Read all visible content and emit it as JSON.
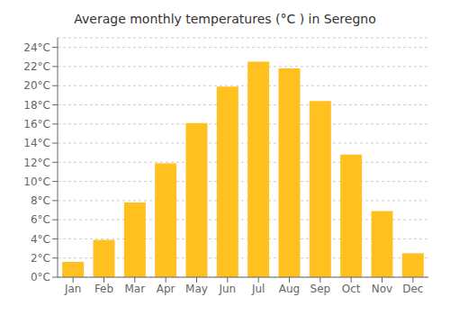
{
  "chart_data": {
    "type": "bar",
    "title": "Average monthly temperatures (°C ) in Seregno",
    "categories": [
      "Jan",
      "Feb",
      "Mar",
      "Apr",
      "May",
      "Jun",
      "Jul",
      "Aug",
      "Sep",
      "Oct",
      "Nov",
      "Dec"
    ],
    "values": [
      1.6,
      3.9,
      7.8,
      11.9,
      16.1,
      19.9,
      22.5,
      21.8,
      18.4,
      12.8,
      6.9,
      2.5
    ],
    "color": "#FFC020",
    "ylim": [
      0,
      25
    ],
    "yticks": [
      {
        "value": 0,
        "label": "0°C"
      },
      {
        "value": 2,
        "label": "2°C"
      },
      {
        "value": 4,
        "label": "4°C"
      },
      {
        "value": 6,
        "label": "6°C"
      },
      {
        "value": 8,
        "label": "8°C"
      },
      {
        "value": 10,
        "label": "10°C"
      },
      {
        "value": 12,
        "label": "12°C"
      },
      {
        "value": 14,
        "label": "14°C"
      },
      {
        "value": 16,
        "label": "16°C"
      },
      {
        "value": 18,
        "label": "18°C"
      },
      {
        "value": 20,
        "label": "20°C"
      },
      {
        "value": 22,
        "label": "22°C"
      },
      {
        "value": 24,
        "label": "24°C"
      }
    ],
    "grid": true
  }
}
